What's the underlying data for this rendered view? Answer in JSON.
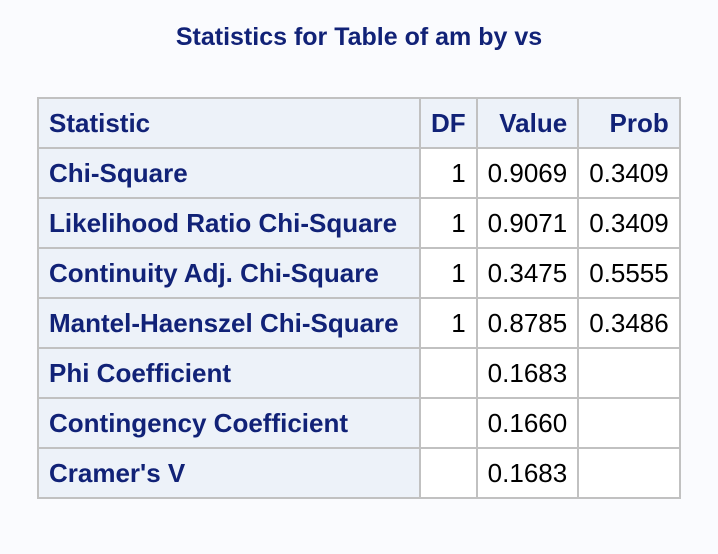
{
  "title": "Statistics for Table of am by vs",
  "table": {
    "headers": [
      "Statistic",
      "DF",
      "Value",
      "Prob"
    ],
    "rows": [
      {
        "statistic": "Chi-Square",
        "df": "1",
        "value": "0.9069",
        "prob": "0.3409"
      },
      {
        "statistic": "Likelihood Ratio Chi-Square",
        "df": "1",
        "value": "0.9071",
        "prob": "0.3409"
      },
      {
        "statistic": "Continuity Adj. Chi-Square",
        "df": "1",
        "value": "0.3475",
        "prob": "0.5555"
      },
      {
        "statistic": "Mantel-Haenszel Chi-Square",
        "df": "1",
        "value": "0.8785",
        "prob": "0.3486"
      },
      {
        "statistic": "Phi Coefficient",
        "df": "",
        "value": "0.1683",
        "prob": ""
      },
      {
        "statistic": "Contingency Coefficient",
        "df": "",
        "value": "0.1660",
        "prob": ""
      },
      {
        "statistic": "Cramer's V",
        "df": "",
        "value": "0.1683",
        "prob": ""
      }
    ]
  }
}
